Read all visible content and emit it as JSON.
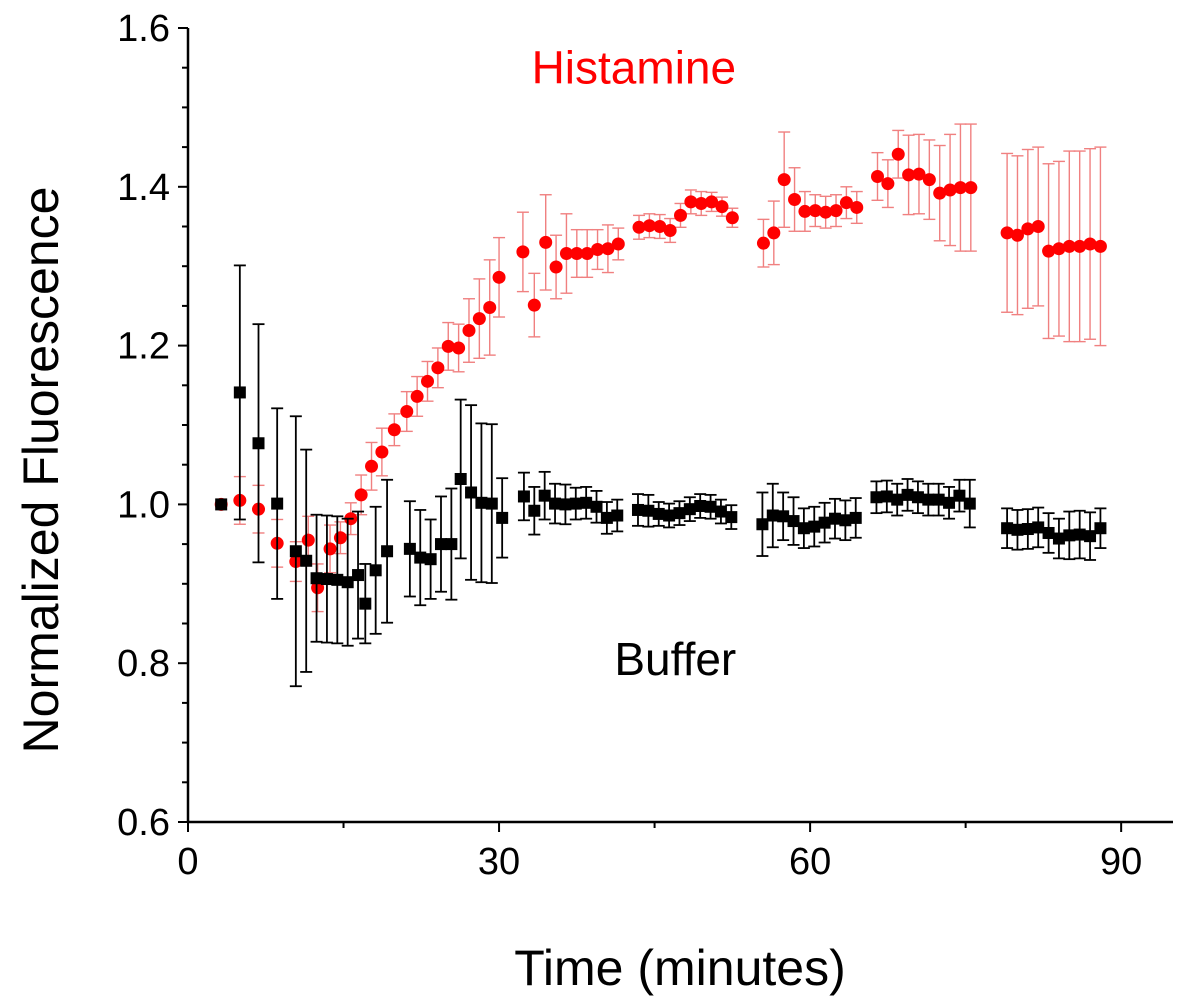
{
  "chart_data": {
    "type": "scatter",
    "xlabel": "Time (minutes)",
    "ylabel": "Normalized Fluorescence",
    "xlim": [
      0,
      95
    ],
    "ylim": [
      0.6,
      1.6
    ],
    "x_ticks": [
      "0",
      "30",
      "60",
      "90"
    ],
    "x_tick_values": [
      0,
      30,
      60,
      90
    ],
    "y_ticks": [
      "0.6",
      "0.8",
      "1.0",
      "1.2",
      "1.4",
      "1.6"
    ],
    "y_tick_values": [
      0.6,
      0.8,
      1.0,
      1.2,
      1.4,
      1.6
    ],
    "annotations": [
      {
        "text": "Histamine",
        "x": 43,
        "y": 1.53,
        "color": "#ff0000"
      },
      {
        "text": "Buffer",
        "x": 47,
        "y": 0.785,
        "color": "#000000"
      }
    ],
    "series": [
      {
        "name": "Histamine",
        "color": "#ff0000",
        "error_color": "#f08080",
        "marker": "circle",
        "points": [
          [
            3.2,
            1.0,
            0.0
          ],
          [
            5.0,
            1.005,
            0.03
          ],
          [
            6.8,
            0.994,
            0.03
          ],
          [
            8.6,
            0.951,
            0.03
          ],
          [
            10.4,
            0.928,
            0.025
          ],
          [
            11.6,
            0.955,
            0.03
          ],
          [
            12.5,
            0.895,
            0.03
          ],
          [
            13.7,
            0.944,
            0.03
          ],
          [
            14.7,
            0.958,
            0.02
          ],
          [
            15.7,
            0.982,
            0.02
          ],
          [
            16.7,
            1.012,
            0.025
          ],
          [
            17.7,
            1.048,
            0.03
          ],
          [
            18.7,
            1.066,
            0.03
          ],
          [
            19.9,
            1.094,
            0.02
          ],
          [
            21.1,
            1.117,
            0.025
          ],
          [
            22.1,
            1.136,
            0.025
          ],
          [
            23.1,
            1.155,
            0.025
          ],
          [
            24.1,
            1.172,
            0.025
          ],
          [
            25.1,
            1.199,
            0.03
          ],
          [
            26.1,
            1.197,
            0.03
          ],
          [
            27.1,
            1.219,
            0.04
          ],
          [
            28.1,
            1.234,
            0.05
          ],
          [
            29.1,
            1.248,
            0.06
          ],
          [
            30.0,
            1.286,
            0.05
          ],
          [
            32.3,
            1.318,
            0.05
          ],
          [
            33.4,
            1.251,
            0.04
          ],
          [
            34.5,
            1.33,
            0.06
          ],
          [
            35.5,
            1.299,
            0.04
          ],
          [
            36.5,
            1.316,
            0.05
          ],
          [
            37.5,
            1.316,
            0.03
          ],
          [
            38.5,
            1.316,
            0.03
          ],
          [
            39.5,
            1.321,
            0.025
          ],
          [
            40.5,
            1.322,
            0.03
          ],
          [
            41.5,
            1.328,
            0.02
          ],
          [
            43.5,
            1.349,
            0.015
          ],
          [
            44.5,
            1.351,
            0.015
          ],
          [
            45.5,
            1.35,
            0.015
          ],
          [
            46.5,
            1.345,
            0.015
          ],
          [
            47.5,
            1.364,
            0.015
          ],
          [
            48.5,
            1.381,
            0.015
          ],
          [
            49.5,
            1.379,
            0.015
          ],
          [
            50.5,
            1.381,
            0.012
          ],
          [
            51.5,
            1.375,
            0.012
          ],
          [
            52.5,
            1.361,
            0.012
          ],
          [
            55.5,
            1.329,
            0.03
          ],
          [
            56.5,
            1.342,
            0.04
          ],
          [
            57.5,
            1.409,
            0.06
          ],
          [
            58.5,
            1.384,
            0.04
          ],
          [
            59.5,
            1.369,
            0.025
          ],
          [
            60.5,
            1.37,
            0.02
          ],
          [
            61.5,
            1.368,
            0.02
          ],
          [
            62.5,
            1.37,
            0.02
          ],
          [
            63.5,
            1.38,
            0.02
          ],
          [
            64.5,
            1.374,
            0.02
          ],
          [
            66.5,
            1.413,
            0.03
          ],
          [
            67.5,
            1.404,
            0.03
          ],
          [
            68.5,
            1.441,
            0.03
          ],
          [
            69.5,
            1.415,
            0.05
          ],
          [
            70.5,
            1.416,
            0.05
          ],
          [
            71.5,
            1.409,
            0.05
          ],
          [
            72.5,
            1.392,
            0.06
          ],
          [
            73.5,
            1.396,
            0.07
          ],
          [
            74.5,
            1.399,
            0.08
          ],
          [
            75.5,
            1.399,
            0.08
          ],
          [
            79.0,
            1.342,
            0.1
          ],
          [
            80.0,
            1.339,
            0.1
          ],
          [
            81.0,
            1.347,
            0.1
          ],
          [
            82.0,
            1.35,
            0.1
          ],
          [
            83.0,
            1.319,
            0.11
          ],
          [
            84.0,
            1.322,
            0.11
          ],
          [
            85.0,
            1.325,
            0.12
          ],
          [
            86.0,
            1.325,
            0.12
          ],
          [
            87.0,
            1.328,
            0.12
          ],
          [
            88.0,
            1.325,
            0.125
          ]
        ]
      },
      {
        "name": "Buffer",
        "color": "#000000",
        "error_color": "#000000",
        "marker": "square",
        "points": [
          [
            3.2,
            1.0,
            0.0
          ],
          [
            5.0,
            1.141,
            0.16
          ],
          [
            6.8,
            1.077,
            0.15
          ],
          [
            8.6,
            1.001,
            0.12
          ],
          [
            10.4,
            0.941,
            0.17
          ],
          [
            11.4,
            0.929,
            0.14
          ],
          [
            12.4,
            0.907,
            0.08
          ],
          [
            13.4,
            0.906,
            0.08
          ],
          [
            14.4,
            0.905,
            0.08
          ],
          [
            15.4,
            0.902,
            0.08
          ],
          [
            16.4,
            0.911,
            0.08
          ],
          [
            17.1,
            0.875,
            0.05
          ],
          [
            18.1,
            0.917,
            0.08
          ],
          [
            19.2,
            0.941,
            0.09
          ],
          [
            21.4,
            0.944,
            0.06
          ],
          [
            22.4,
            0.933,
            0.06
          ],
          [
            23.4,
            0.931,
            0.05
          ],
          [
            24.4,
            0.95,
            0.06
          ],
          [
            25.4,
            0.95,
            0.07
          ],
          [
            26.3,
            1.032,
            0.1
          ],
          [
            27.3,
            1.015,
            0.11
          ],
          [
            28.3,
            1.002,
            0.1
          ],
          [
            29.3,
            1.001,
            0.1
          ],
          [
            30.3,
            0.983,
            0.05
          ],
          [
            32.4,
            1.01,
            0.03
          ],
          [
            33.4,
            0.992,
            0.03
          ],
          [
            34.4,
            1.011,
            0.03
          ],
          [
            35.4,
            1.001,
            0.025
          ],
          [
            36.4,
            1.0,
            0.025
          ],
          [
            37.4,
            1.001,
            0.02
          ],
          [
            38.4,
            1.002,
            0.02
          ],
          [
            39.4,
            0.997,
            0.02
          ],
          [
            40.4,
            0.983,
            0.02
          ],
          [
            41.4,
            0.986,
            0.02
          ],
          [
            43.4,
            0.993,
            0.02
          ],
          [
            44.4,
            0.992,
            0.02
          ],
          [
            45.4,
            0.988,
            0.015
          ],
          [
            46.4,
            0.986,
            0.015
          ],
          [
            47.4,
            0.989,
            0.015
          ],
          [
            48.4,
            0.994,
            0.015
          ],
          [
            49.4,
            0.998,
            0.015
          ],
          [
            50.4,
            0.997,
            0.015
          ],
          [
            51.4,
            0.991,
            0.015
          ],
          [
            52.4,
            0.984,
            0.015
          ],
          [
            55.4,
            0.975,
            0.04
          ],
          [
            56.4,
            0.986,
            0.04
          ],
          [
            57.4,
            0.985,
            0.03
          ],
          [
            58.4,
            0.979,
            0.03
          ],
          [
            59.4,
            0.97,
            0.025
          ],
          [
            60.4,
            0.972,
            0.025
          ],
          [
            61.4,
            0.977,
            0.025
          ],
          [
            62.4,
            0.982,
            0.025
          ],
          [
            63.4,
            0.98,
            0.025
          ],
          [
            64.4,
            0.983,
            0.025
          ],
          [
            66.4,
            1.009,
            0.02
          ],
          [
            67.4,
            1.01,
            0.02
          ],
          [
            68.4,
            1.006,
            0.02
          ],
          [
            69.4,
            1.012,
            0.02
          ],
          [
            70.4,
            1.009,
            0.02
          ],
          [
            71.4,
            1.006,
            0.02
          ],
          [
            72.4,
            1.006,
            0.02
          ],
          [
            73.4,
            1.002,
            0.02
          ],
          [
            74.4,
            1.011,
            0.02
          ],
          [
            75.4,
            1.001,
            0.03
          ],
          [
            79.0,
            0.97,
            0.025
          ],
          [
            80.0,
            0.968,
            0.025
          ],
          [
            81.0,
            0.969,
            0.025
          ],
          [
            82.0,
            0.971,
            0.025
          ],
          [
            83.0,
            0.964,
            0.025
          ],
          [
            84.0,
            0.957,
            0.025
          ],
          [
            85.0,
            0.961,
            0.03
          ],
          [
            86.0,
            0.962,
            0.03
          ],
          [
            87.0,
            0.96,
            0.03
          ],
          [
            88.0,
            0.97,
            0.025
          ]
        ]
      }
    ]
  }
}
